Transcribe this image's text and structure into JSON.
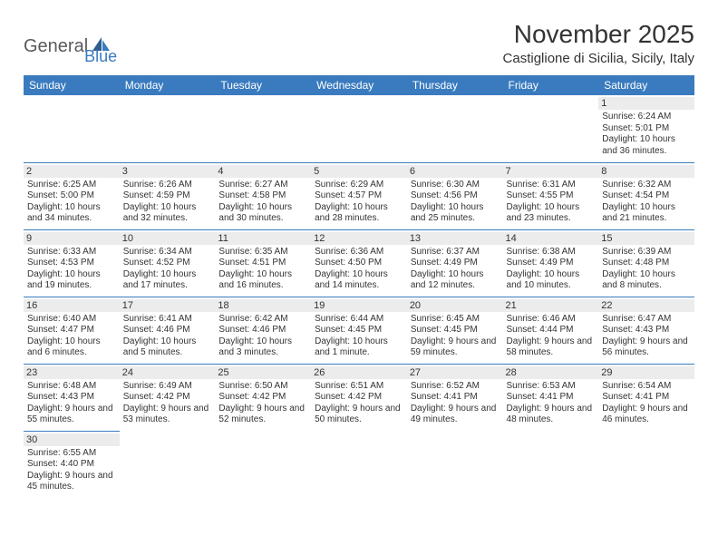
{
  "logo": {
    "part1": "General",
    "part2": "Blue"
  },
  "title": "November 2025",
  "location": "Castiglione di Sicilia, Sicily, Italy",
  "colors": {
    "header_bg": "#3a7bbf",
    "header_text": "#ffffff",
    "border": "#3a7bbf",
    "daynum_bg": "#ececec",
    "text": "#333333",
    "logo_gray": "#5a5a5a",
    "logo_blue": "#3a7bbf",
    "page_bg": "#ffffff"
  },
  "fonts": {
    "title_size": 28,
    "location_size": 15,
    "header_size": 12,
    "daynum_size": 11,
    "cell_size": 10
  },
  "weekdays": [
    "Sunday",
    "Monday",
    "Tuesday",
    "Wednesday",
    "Thursday",
    "Friday",
    "Saturday"
  ],
  "weeks": [
    [
      null,
      null,
      null,
      null,
      null,
      null,
      {
        "n": "1",
        "sunrise": "Sunrise: 6:24 AM",
        "sunset": "Sunset: 5:01 PM",
        "daylight": "Daylight: 10 hours and 36 minutes."
      }
    ],
    [
      {
        "n": "2",
        "sunrise": "Sunrise: 6:25 AM",
        "sunset": "Sunset: 5:00 PM",
        "daylight": "Daylight: 10 hours and 34 minutes."
      },
      {
        "n": "3",
        "sunrise": "Sunrise: 6:26 AM",
        "sunset": "Sunset: 4:59 PM",
        "daylight": "Daylight: 10 hours and 32 minutes."
      },
      {
        "n": "4",
        "sunrise": "Sunrise: 6:27 AM",
        "sunset": "Sunset: 4:58 PM",
        "daylight": "Daylight: 10 hours and 30 minutes."
      },
      {
        "n": "5",
        "sunrise": "Sunrise: 6:29 AM",
        "sunset": "Sunset: 4:57 PM",
        "daylight": "Daylight: 10 hours and 28 minutes."
      },
      {
        "n": "6",
        "sunrise": "Sunrise: 6:30 AM",
        "sunset": "Sunset: 4:56 PM",
        "daylight": "Daylight: 10 hours and 25 minutes."
      },
      {
        "n": "7",
        "sunrise": "Sunrise: 6:31 AM",
        "sunset": "Sunset: 4:55 PM",
        "daylight": "Daylight: 10 hours and 23 minutes."
      },
      {
        "n": "8",
        "sunrise": "Sunrise: 6:32 AM",
        "sunset": "Sunset: 4:54 PM",
        "daylight": "Daylight: 10 hours and 21 minutes."
      }
    ],
    [
      {
        "n": "9",
        "sunrise": "Sunrise: 6:33 AM",
        "sunset": "Sunset: 4:53 PM",
        "daylight": "Daylight: 10 hours and 19 minutes."
      },
      {
        "n": "10",
        "sunrise": "Sunrise: 6:34 AM",
        "sunset": "Sunset: 4:52 PM",
        "daylight": "Daylight: 10 hours and 17 minutes."
      },
      {
        "n": "11",
        "sunrise": "Sunrise: 6:35 AM",
        "sunset": "Sunset: 4:51 PM",
        "daylight": "Daylight: 10 hours and 16 minutes."
      },
      {
        "n": "12",
        "sunrise": "Sunrise: 6:36 AM",
        "sunset": "Sunset: 4:50 PM",
        "daylight": "Daylight: 10 hours and 14 minutes."
      },
      {
        "n": "13",
        "sunrise": "Sunrise: 6:37 AM",
        "sunset": "Sunset: 4:49 PM",
        "daylight": "Daylight: 10 hours and 12 minutes."
      },
      {
        "n": "14",
        "sunrise": "Sunrise: 6:38 AM",
        "sunset": "Sunset: 4:49 PM",
        "daylight": "Daylight: 10 hours and 10 minutes."
      },
      {
        "n": "15",
        "sunrise": "Sunrise: 6:39 AM",
        "sunset": "Sunset: 4:48 PM",
        "daylight": "Daylight: 10 hours and 8 minutes."
      }
    ],
    [
      {
        "n": "16",
        "sunrise": "Sunrise: 6:40 AM",
        "sunset": "Sunset: 4:47 PM",
        "daylight": "Daylight: 10 hours and 6 minutes."
      },
      {
        "n": "17",
        "sunrise": "Sunrise: 6:41 AM",
        "sunset": "Sunset: 4:46 PM",
        "daylight": "Daylight: 10 hours and 5 minutes."
      },
      {
        "n": "18",
        "sunrise": "Sunrise: 6:42 AM",
        "sunset": "Sunset: 4:46 PM",
        "daylight": "Daylight: 10 hours and 3 minutes."
      },
      {
        "n": "19",
        "sunrise": "Sunrise: 6:44 AM",
        "sunset": "Sunset: 4:45 PM",
        "daylight": "Daylight: 10 hours and 1 minute."
      },
      {
        "n": "20",
        "sunrise": "Sunrise: 6:45 AM",
        "sunset": "Sunset: 4:45 PM",
        "daylight": "Daylight: 9 hours and 59 minutes."
      },
      {
        "n": "21",
        "sunrise": "Sunrise: 6:46 AM",
        "sunset": "Sunset: 4:44 PM",
        "daylight": "Daylight: 9 hours and 58 minutes."
      },
      {
        "n": "22",
        "sunrise": "Sunrise: 6:47 AM",
        "sunset": "Sunset: 4:43 PM",
        "daylight": "Daylight: 9 hours and 56 minutes."
      }
    ],
    [
      {
        "n": "23",
        "sunrise": "Sunrise: 6:48 AM",
        "sunset": "Sunset: 4:43 PM",
        "daylight": "Daylight: 9 hours and 55 minutes."
      },
      {
        "n": "24",
        "sunrise": "Sunrise: 6:49 AM",
        "sunset": "Sunset: 4:42 PM",
        "daylight": "Daylight: 9 hours and 53 minutes."
      },
      {
        "n": "25",
        "sunrise": "Sunrise: 6:50 AM",
        "sunset": "Sunset: 4:42 PM",
        "daylight": "Daylight: 9 hours and 52 minutes."
      },
      {
        "n": "26",
        "sunrise": "Sunrise: 6:51 AM",
        "sunset": "Sunset: 4:42 PM",
        "daylight": "Daylight: 9 hours and 50 minutes."
      },
      {
        "n": "27",
        "sunrise": "Sunrise: 6:52 AM",
        "sunset": "Sunset: 4:41 PM",
        "daylight": "Daylight: 9 hours and 49 minutes."
      },
      {
        "n": "28",
        "sunrise": "Sunrise: 6:53 AM",
        "sunset": "Sunset: 4:41 PM",
        "daylight": "Daylight: 9 hours and 48 minutes."
      },
      {
        "n": "29",
        "sunrise": "Sunrise: 6:54 AM",
        "sunset": "Sunset: 4:41 PM",
        "daylight": "Daylight: 9 hours and 46 minutes."
      }
    ],
    [
      {
        "n": "30",
        "sunrise": "Sunrise: 6:55 AM",
        "sunset": "Sunset: 4:40 PM",
        "daylight": "Daylight: 9 hours and 45 minutes."
      },
      null,
      null,
      null,
      null,
      null,
      null
    ]
  ]
}
